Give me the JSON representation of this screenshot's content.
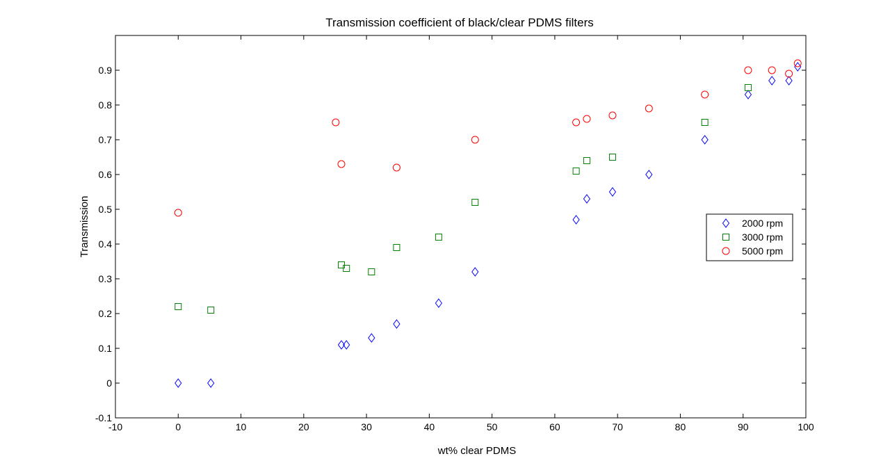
{
  "chart_data": {
    "type": "scatter",
    "title": "Transmission coefficient of black/clear PDMS filters",
    "xlabel": "wt% clear PDMS",
    "ylabel": "Transmission",
    "xlim": [
      -10,
      100
    ],
    "ylim": [
      -0.1,
      1.0
    ],
    "x_ticks": [
      "-10",
      "0",
      "10",
      "20",
      "30",
      "40",
      "50",
      "60",
      "70",
      "80",
      "90",
      "100"
    ],
    "y_ticks": [
      "-0.1",
      "0",
      "0.1",
      "0.2",
      "0.3",
      "0.4",
      "0.5",
      "0.6",
      "0.7",
      "0.8",
      "0.9"
    ],
    "grid": false,
    "legend_position": "right",
    "series": [
      {
        "name": "2000 rpm",
        "marker": "diamond",
        "color": "#0000ff",
        "points": [
          [
            0,
            0.0
          ],
          [
            5.2,
            0.0
          ],
          [
            26,
            0.11
          ],
          [
            26.8,
            0.11
          ],
          [
            30.8,
            0.13
          ],
          [
            34.8,
            0.17
          ],
          [
            41.5,
            0.23
          ],
          [
            47.3,
            0.32
          ],
          [
            63.4,
            0.47
          ],
          [
            65.1,
            0.53
          ],
          [
            69.2,
            0.55
          ],
          [
            75,
            0.6
          ],
          [
            83.9,
            0.7
          ],
          [
            90.8,
            0.83
          ],
          [
            94.6,
            0.87
          ],
          [
            97.3,
            0.87
          ],
          [
            98.7,
            0.91
          ]
        ]
      },
      {
        "name": "3000 rpm",
        "marker": "square",
        "color": "#007f00",
        "points": [
          [
            0,
            0.22
          ],
          [
            5.2,
            0.21
          ],
          [
            26,
            0.34
          ],
          [
            26.8,
            0.33
          ],
          [
            30.8,
            0.32
          ],
          [
            34.8,
            0.39
          ],
          [
            41.5,
            0.42
          ],
          [
            47.3,
            0.52
          ],
          [
            63.4,
            0.61
          ],
          [
            65.1,
            0.64
          ],
          [
            69.2,
            0.65
          ],
          [
            83.9,
            0.75
          ],
          [
            90.8,
            0.85
          ]
        ]
      },
      {
        "name": "5000 rpm",
        "marker": "circle",
        "color": "#ff0000",
        "points": [
          [
            0,
            0.49
          ],
          [
            25.1,
            0.75
          ],
          [
            26,
            0.63
          ],
          [
            34.8,
            0.62
          ],
          [
            47.3,
            0.7
          ],
          [
            63.4,
            0.75
          ],
          [
            65.1,
            0.76
          ],
          [
            69.2,
            0.77
          ],
          [
            75,
            0.79
          ],
          [
            83.9,
            0.83
          ],
          [
            90.8,
            0.9
          ],
          [
            94.6,
            0.9
          ],
          [
            97.3,
            0.89
          ],
          [
            98.7,
            0.92
          ]
        ]
      }
    ]
  }
}
